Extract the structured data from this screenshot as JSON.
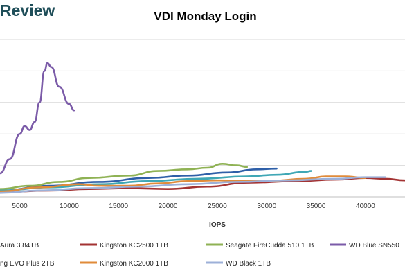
{
  "brand": {
    "text": "Review"
  },
  "chart_data": {
    "type": "line",
    "title": "VDI Monday Login",
    "xlabel": "IOPS",
    "ylabel": "",
    "xlim": [
      3000,
      44000
    ],
    "ylim": [
      0,
      200
    ],
    "x_ticks": [
      5000,
      10000,
      15000,
      20000,
      25000,
      30000,
      35000,
      40000
    ],
    "x_tick_labels": [
      "5000",
      "10000",
      "15000",
      "20000",
      "25000",
      "30000",
      "35000",
      "40000"
    ],
    "y_grid": [
      40,
      80,
      120,
      160,
      200
    ],
    "grid": true,
    "series": [
      {
        "name": "Aura 3.84TB",
        "color": "#2e5fa8",
        "points": [
          [
            3000,
            8
          ],
          [
            8000,
            14
          ],
          [
            13000,
            19
          ],
          [
            18000,
            24
          ],
          [
            22000,
            27
          ],
          [
            26000,
            31
          ],
          [
            29000,
            35
          ],
          [
            31000,
            36
          ]
        ]
      },
      {
        "name": "Kingston KC2500 1TB",
        "color": "#a33333",
        "points": [
          [
            3000,
            6
          ],
          [
            8000,
            8
          ],
          [
            12000,
            10
          ],
          [
            16000,
            11
          ],
          [
            20000,
            10
          ],
          [
            24000,
            13
          ],
          [
            28000,
            18
          ],
          [
            33000,
            20
          ],
          [
            37000,
            22
          ],
          [
            40000,
            24
          ],
          [
            42000,
            23
          ],
          [
            44000,
            21
          ]
        ]
      },
      {
        "name": "Seagate FireCudda 510 1TB",
        "color": "#8fb254",
        "points": [
          [
            3000,
            10
          ],
          [
            6000,
            14
          ],
          [
            9000,
            19
          ],
          [
            12000,
            24
          ],
          [
            16000,
            27
          ],
          [
            19000,
            33
          ],
          [
            22000,
            35
          ],
          [
            24000,
            37
          ],
          [
            25500,
            42
          ],
          [
            27000,
            40
          ],
          [
            28000,
            38
          ]
        ]
      },
      {
        "name": "WD Blue SN550",
        "color": "#7b5ba8",
        "points": [
          [
            3000,
            30
          ],
          [
            4000,
            48
          ],
          [
            5000,
            80
          ],
          [
            5500,
            90
          ],
          [
            6000,
            85
          ],
          [
            6500,
            95
          ],
          [
            7000,
            120
          ],
          [
            7500,
            160
          ],
          [
            7800,
            170
          ],
          [
            8200,
            165
          ],
          [
            9000,
            140
          ],
          [
            10000,
            118
          ],
          [
            10500,
            110
          ]
        ]
      },
      {
        "name": "ng EVO Plus 2TB",
        "color": "#3fa7b5",
        "points": [
          [
            3000,
            8
          ],
          [
            8000,
            12
          ],
          [
            13000,
            16
          ],
          [
            18000,
            20
          ],
          [
            23000,
            23
          ],
          [
            28000,
            26
          ],
          [
            31000,
            28
          ],
          [
            34000,
            32
          ],
          [
            34500,
            33
          ]
        ]
      },
      {
        "name": "Kingston KC2000 1TB",
        "color": "#e08b3a",
        "points": [
          [
            3000,
            7
          ],
          [
            7000,
            12
          ],
          [
            11000,
            16
          ],
          [
            13000,
            14
          ],
          [
            16000,
            14
          ],
          [
            19000,
            17
          ],
          [
            22000,
            20
          ],
          [
            25000,
            21
          ],
          [
            30000,
            20
          ],
          [
            34000,
            23
          ],
          [
            36000,
            26
          ],
          [
            38000,
            26
          ],
          [
            40000,
            24
          ]
        ]
      },
      {
        "name": "WD Black 1TB",
        "color": "#9db0d8",
        "points": [
          [
            3000,
            5
          ],
          [
            7000,
            8
          ],
          [
            12000,
            11
          ],
          [
            17000,
            13
          ],
          [
            22000,
            16
          ],
          [
            27000,
            19
          ],
          [
            32000,
            21
          ],
          [
            37000,
            23
          ],
          [
            40000,
            25
          ],
          [
            42000,
            25
          ]
        ]
      }
    ],
    "legend": [
      {
        "label": "Aura 3.84TB",
        "color": "#2e5fa8"
      },
      {
        "label": "Kingston KC2500 1TB",
        "color": "#a33333"
      },
      {
        "label": "Seagate FireCudda 510 1TB",
        "color": "#8fb254"
      },
      {
        "label": "WD Blue SN550",
        "color": "#7b5ba8"
      },
      {
        "label": "ng EVO Plus 2TB",
        "color": "#3fa7b5"
      },
      {
        "label": "Kingston KC2000 1TB",
        "color": "#e08b3a"
      },
      {
        "label": "WD Black 1TB",
        "color": "#9db0d8"
      }
    ]
  }
}
